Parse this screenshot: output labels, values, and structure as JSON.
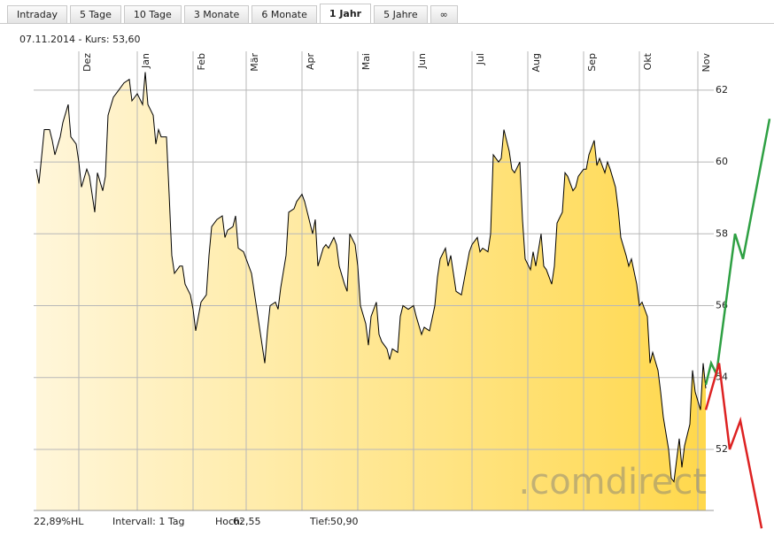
{
  "tabs": [
    "Intraday",
    "5 Tage",
    "10 Tage",
    "3 Monate",
    "6 Monate",
    "1 Jahr",
    "5 Jahre",
    "∞"
  ],
  "active_tab": 5,
  "header": "07.11.2014  - Kurs: 53,60",
  "chart_data": {
    "type": "area",
    "color": "#000000",
    "fill_colors": [
      "#fff6da",
      "#ffd84c"
    ],
    "x": [
      1,
      2,
      4,
      6,
      7,
      8,
      10,
      11,
      13,
      14,
      16,
      17,
      18,
      20,
      21,
      23,
      24,
      26,
      27,
      28,
      30,
      32,
      34,
      36,
      37,
      39,
      41,
      42,
      43,
      45,
      46,
      47,
      48,
      50,
      51,
      52,
      53,
      55,
      56,
      57,
      59,
      60,
      61,
      63,
      65,
      66,
      67,
      69,
      71,
      72,
      73,
      75,
      76,
      77,
      79,
      81,
      82,
      84,
      85,
      87,
      88,
      89,
      91,
      92,
      93,
      95,
      96,
      98,
      99,
      101,
      102,
      103,
      105,
      106,
      107,
      109,
      110,
      111,
      113,
      114,
      115,
      117,
      118,
      119,
      121,
      122,
      123,
      125,
      126,
      127,
      129,
      130,
      131,
      133,
      134,
      135,
      137,
      138,
      139,
      141,
      143,
      144,
      146,
      147,
      149,
      151,
      152,
      153,
      155,
      156,
      157,
      159,
      161,
      163,
      164,
      165,
      167,
      168,
      169,
      171,
      172,
      173,
      175,
      176,
      177,
      179,
      180,
      181,
      183,
      184,
      185,
      187,
      188,
      189,
      191,
      192,
      193,
      195,
      196,
      197,
      199,
      200,
      201,
      203,
      204,
      205,
      207,
      208,
      209,
      211,
      212,
      213,
      215,
      216,
      217,
      219,
      220,
      221,
      223,
      224,
      225,
      227,
      228,
      229,
      231,
      232,
      233,
      235,
      236,
      237,
      239,
      240,
      241,
      243,
      244,
      245,
      247,
      248,
      249,
      251,
      252,
      253
    ],
    "values": [
      59.8,
      59.4,
      60.9,
      60.9,
      60.6,
      60.2,
      60.7,
      61.1,
      61.6,
      60.7,
      60.5,
      60.0,
      59.3,
      59.8,
      59.6,
      58.6,
      59.7,
      59.2,
      59.6,
      61.3,
      61.8,
      62.0,
      62.2,
      62.3,
      61.7,
      61.9,
      61.6,
      62.5,
      61.6,
      61.3,
      60.5,
      60.9,
      60.7,
      60.7,
      59.1,
      57.4,
      56.9,
      57.1,
      57.1,
      56.6,
      56.3,
      55.9,
      55.3,
      56.1,
      56.3,
      57.4,
      58.2,
      58.4,
      58.5,
      57.9,
      58.1,
      58.2,
      58.5,
      57.6,
      57.5,
      57.1,
      56.9,
      55.9,
      55.4,
      54.4,
      55.3,
      56.0,
      56.1,
      55.9,
      56.5,
      57.4,
      58.6,
      58.7,
      58.9,
      59.1,
      58.9,
      58.6,
      58.0,
      58.4,
      57.1,
      57.6,
      57.7,
      57.6,
      57.9,
      57.7,
      57.1,
      56.6,
      56.4,
      58.0,
      57.7,
      57.1,
      56.0,
      55.5,
      54.9,
      55.7,
      56.1,
      55.2,
      55.0,
      54.8,
      54.5,
      54.8,
      54.7,
      55.7,
      56.0,
      55.9,
      56.0,
      55.7,
      55.2,
      55.4,
      55.3,
      56.0,
      56.8,
      57.3,
      57.6,
      57.1,
      57.4,
      56.4,
      56.3,
      57.1,
      57.5,
      57.7,
      57.9,
      57.5,
      57.6,
      57.5,
      58.0,
      60.2,
      60.0,
      60.1,
      60.9,
      60.3,
      59.8,
      59.7,
      60.0,
      58.4,
      57.3,
      57.0,
      57.5,
      57.1,
      58.0,
      57.1,
      57.0,
      56.6,
      57.1,
      58.3,
      58.6,
      59.7,
      59.6,
      59.2,
      59.3,
      59.6,
      59.8,
      59.8,
      60.2,
      60.6,
      59.9,
      60.1,
      59.7,
      60.0,
      59.8,
      59.3,
      58.7,
      57.9,
      57.4,
      57.1,
      57.3,
      56.6,
      56.0,
      56.1,
      55.7,
      54.4,
      54.7,
      54.2,
      53.6,
      52.9,
      52.0,
      51.2,
      51.1,
      52.3,
      51.5,
      52.1,
      52.7,
      54.2,
      53.6,
      53.1,
      54.4,
      53.7
    ],
    "xlim": [
      0,
      256
    ],
    "xticks": [
      {
        "value": 17,
        "label": "Dez"
      },
      {
        "value": 39,
        "label": "Jan"
      },
      {
        "value": 60,
        "label": "Feb"
      },
      {
        "value": 80,
        "label": "Mär"
      },
      {
        "value": 101,
        "label": "Apr"
      },
      {
        "value": 122,
        "label": "Mai"
      },
      {
        "value": 143,
        "label": "Jun"
      },
      {
        "value": 165,
        "label": "Jul"
      },
      {
        "value": 186,
        "label": "Aug"
      },
      {
        "value": 207,
        "label": "Sep"
      },
      {
        "value": 228,
        "label": "Okt"
      },
      {
        "value": 250,
        "label": "Nov"
      }
    ],
    "ylim": [
      50.3,
      63.08
    ],
    "yticks": [
      52,
      54,
      56,
      58,
      60,
      62
    ],
    "grid": true,
    "projections": [
      {
        "color": "#2ea043",
        "x": [
          253,
          255,
          257,
          264,
          267,
          277
        ],
        "values": [
          53.8,
          54.4,
          54.1,
          58.0,
          57.3,
          61.2
        ]
      },
      {
        "color": "#dd2222",
        "x": [
          253,
          258,
          262,
          266,
          274
        ],
        "values": [
          53.1,
          54.4,
          52.0,
          52.8,
          49.8
        ]
      }
    ],
    "watermark": ".comdirect"
  },
  "footer": {
    "hl": "22,89%HL",
    "interval": "Intervall: 1 Tag",
    "high_label": "Hoch:",
    "high": "62,55",
    "low_label": "Tief:",
    "low": "50,90"
  }
}
